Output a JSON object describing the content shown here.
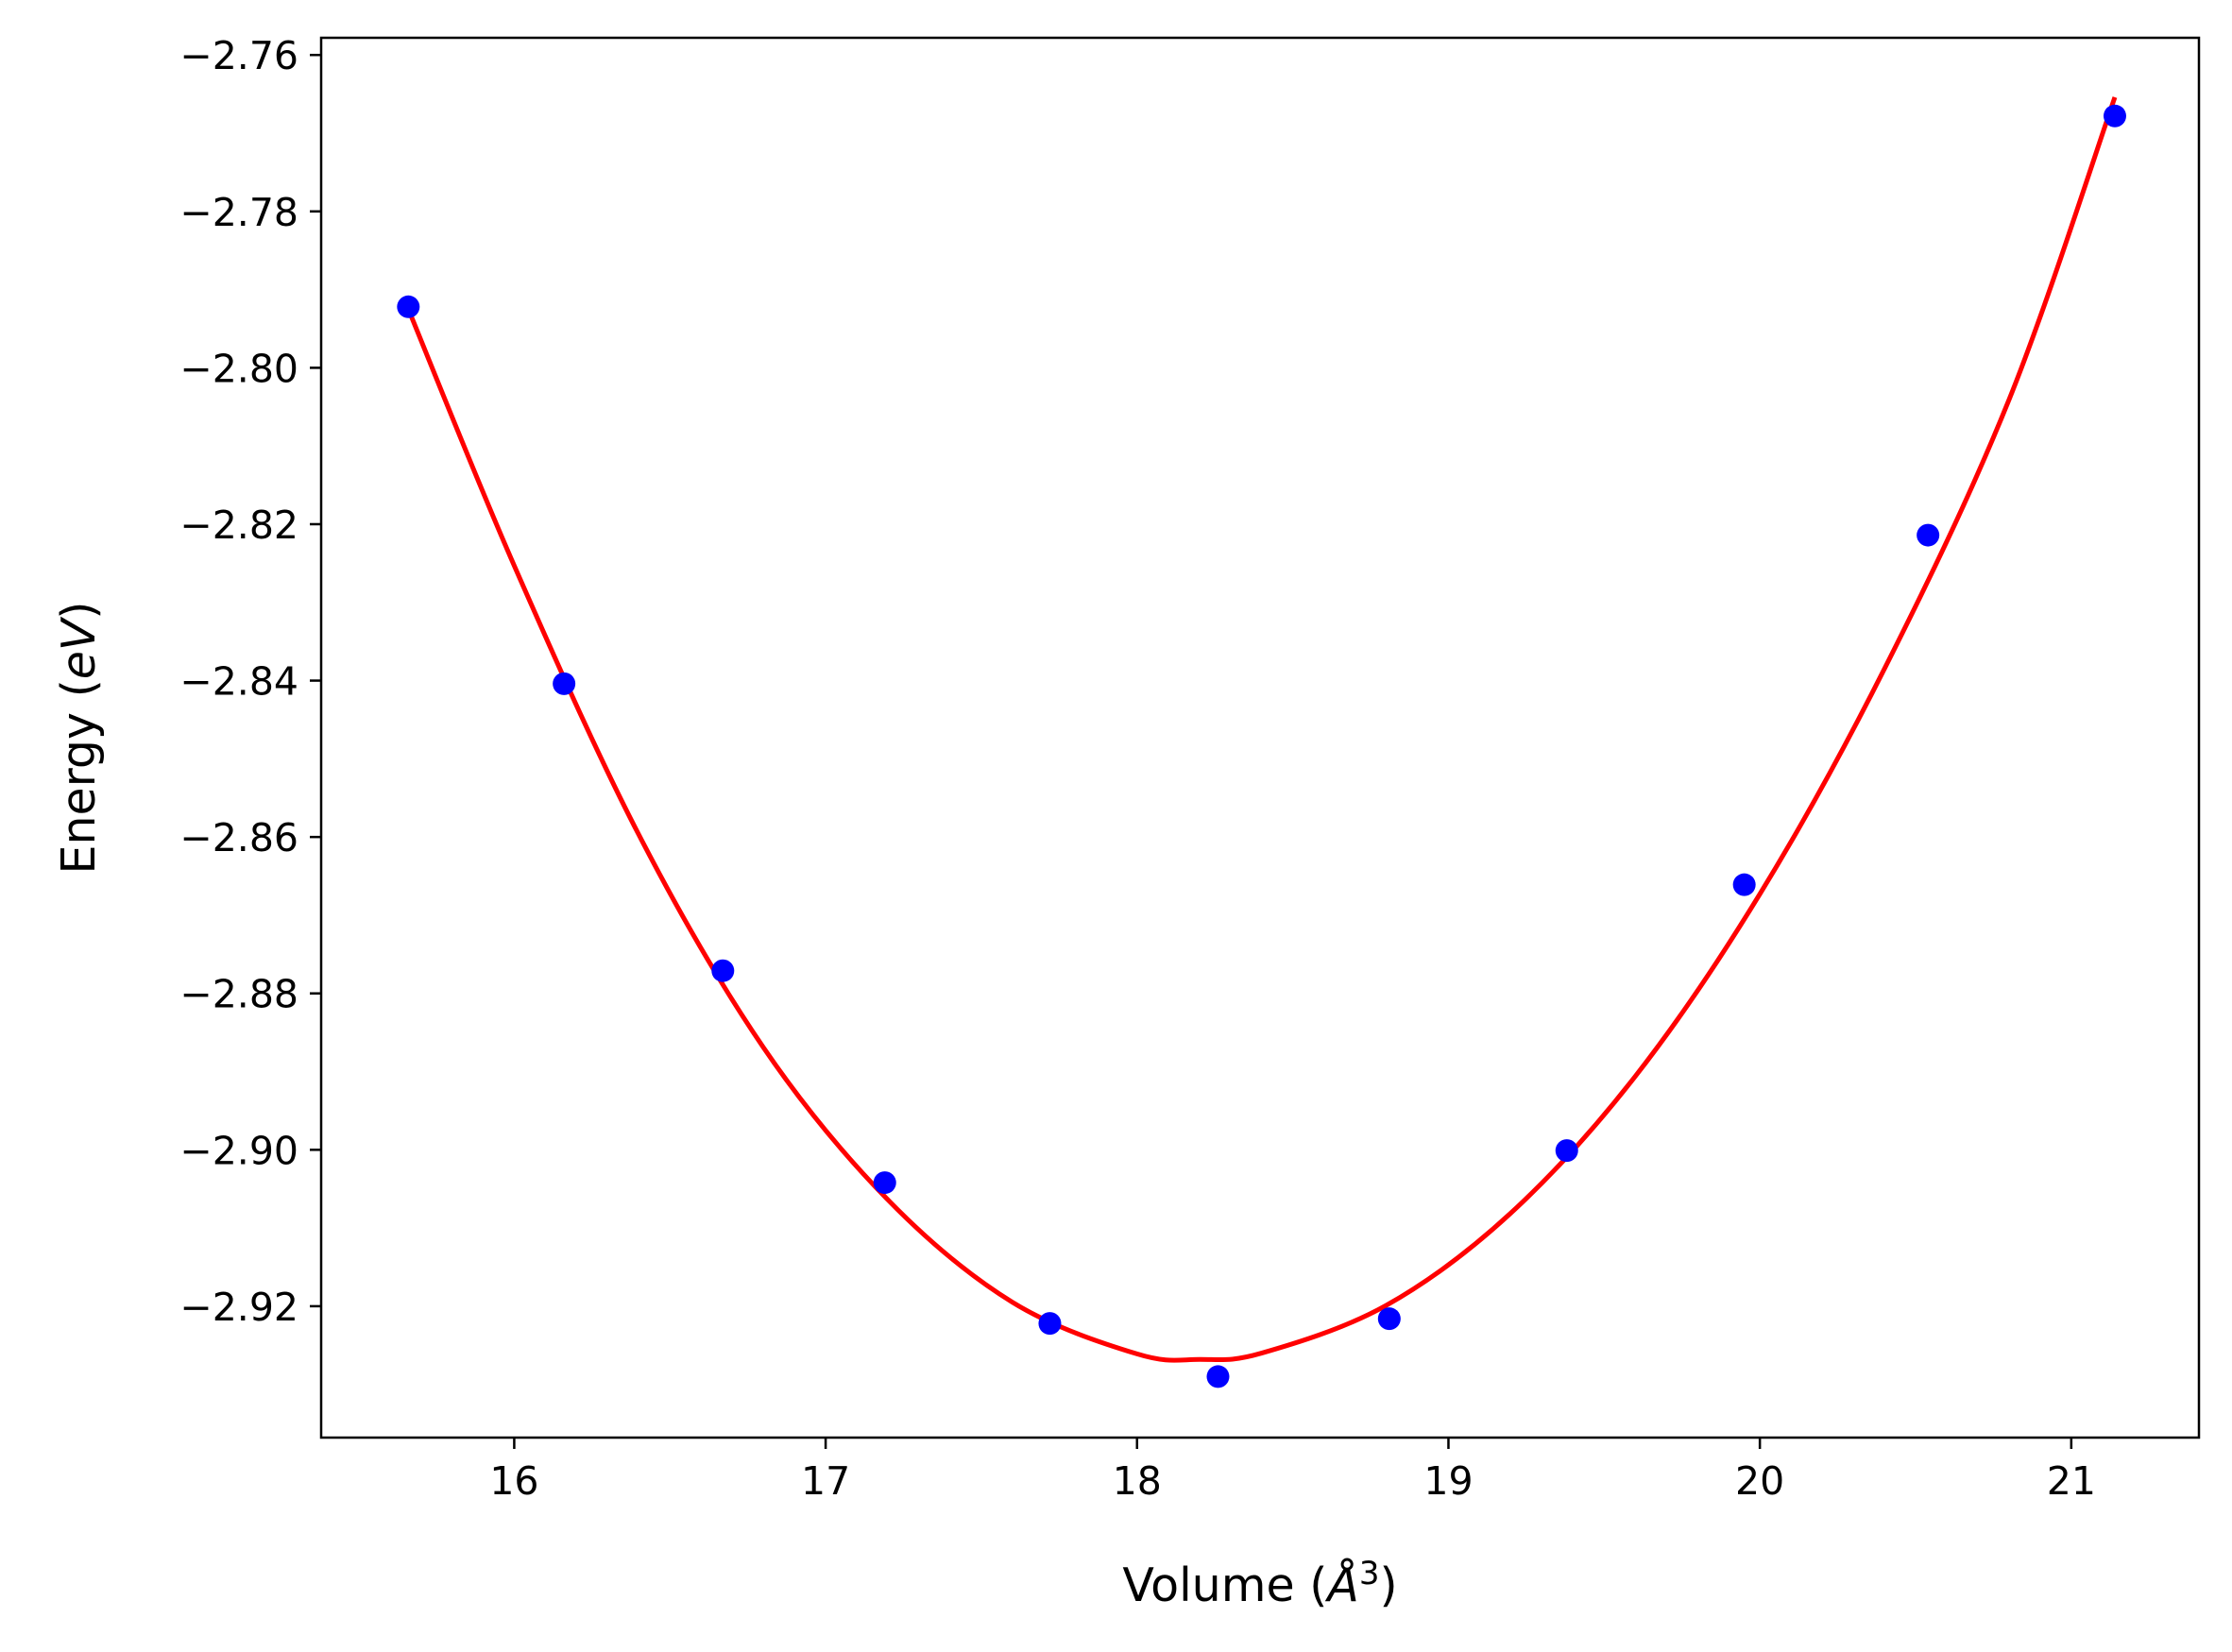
{
  "chart_data": {
    "type": "scatter",
    "title": "",
    "xlabel": "Volume",
    "ylabel": "Energy",
    "xlabel_parts": {
      "pre": "Volume (",
      "sym": "Å",
      "sup": "3",
      "post": ")"
    },
    "ylabel_parts": {
      "pre": "Energy (",
      "unit": "eV",
      "post": ")"
    },
    "xlim": [
      15.38,
      21.41
    ],
    "ylim": [
      -2.9368,
      -2.7578
    ],
    "xticks": [
      16,
      17,
      18,
      19,
      20,
      21
    ],
    "yticks": [
      -2.76,
      -2.78,
      -2.8,
      -2.82,
      -2.84,
      -2.86,
      -2.88,
      -2.9,
      -2.92
    ],
    "ytick_labels": [
      "−2.76",
      "−2.78",
      "−2.80",
      "−2.82",
      "−2.84",
      "−2.86",
      "−2.88",
      "−2.90",
      "−2.92"
    ],
    "grid": false,
    "series": [
      {
        "kind": "scatter",
        "color": "#0000ff",
        "x": [
          15.66,
          16.16,
          16.67,
          17.19,
          17.72,
          18.26,
          18.81,
          19.38,
          19.95,
          20.54,
          21.14
        ],
        "y": [
          -2.7922,
          -2.8404,
          -2.8771,
          -2.9042,
          -2.9222,
          -2.929,
          -2.9216,
          -2.9001,
          -2.8661,
          -2.8214,
          -2.7678
        ]
      },
      {
        "kind": "line",
        "color": "#ff0000",
        "x": [
          15.66,
          16.0,
          16.4,
          16.8,
          17.2,
          17.6,
          18.0,
          18.2,
          18.4,
          18.8,
          19.2,
          19.6,
          20.0,
          20.4,
          20.8,
          21.14
        ],
        "y": [
          -2.7925,
          -2.8253,
          -2.8597,
          -2.8869,
          -2.9064,
          -2.9195,
          -2.9261,
          -2.9268,
          -2.926,
          -2.9199,
          -2.9081,
          -2.8906,
          -2.8673,
          -2.8385,
          -2.8041,
          -2.7654
        ]
      }
    ]
  }
}
